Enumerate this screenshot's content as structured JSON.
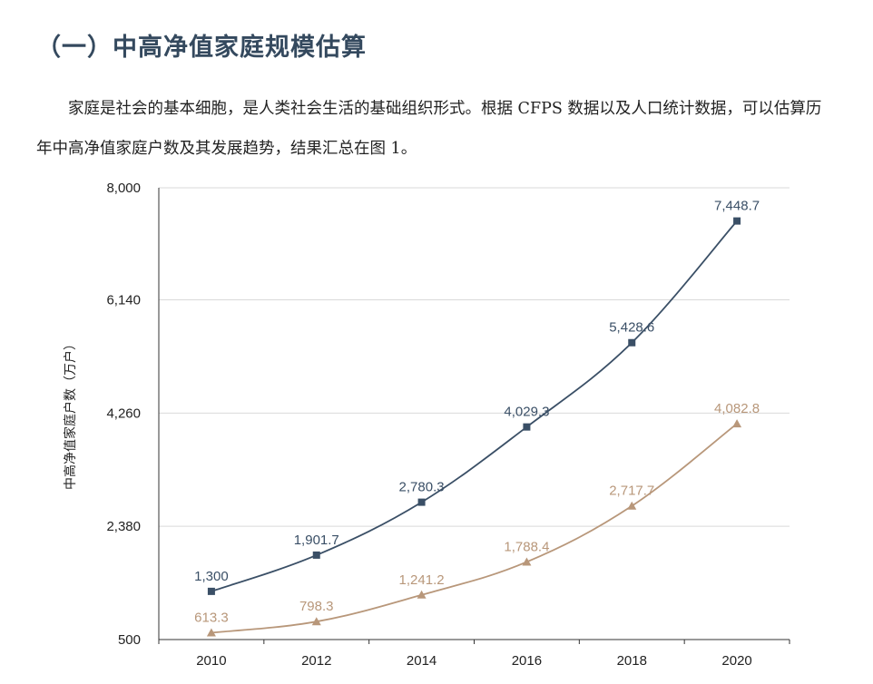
{
  "section": {
    "heading": "（一）中高净值家庭规模估算",
    "paragraph": "家庭是社会的基本细胞，是人类社会生活的基础组织形式。根据 CFPS 数据以及人口统计数据，可以估算历年中高净值家庭户数及其发展趋势，结果汇总在图 1。"
  },
  "chart_data": {
    "type": "line",
    "title": "",
    "xlabel": "",
    "ylabel": "中高净值家庭户数（万户）",
    "categories": [
      "2010",
      "2012",
      "2014",
      "2016",
      "2018",
      "2020"
    ],
    "ylim": [
      500,
      8000
    ],
    "yticks": [
      500,
      2380,
      4260,
      6140,
      8000
    ],
    "ytick_labels": [
      "500",
      "2,380",
      "4,260",
      "6,140",
      "8,000"
    ],
    "grid": true,
    "legend": "none",
    "series": [
      {
        "values": [
          1300,
          1901.7,
          2780.3,
          4029.3,
          5428.6,
          7448.7
        ],
        "labels": [
          "1,300",
          "1,901.7",
          "2,780.3",
          "4,029.3",
          "5,428.6",
          "7,448.7"
        ],
        "color": "#3a4f66",
        "marker": "square"
      },
      {
        "values": [
          613.3,
          798.3,
          1241.2,
          1788.4,
          2717.7,
          4082.8
        ],
        "labels": [
          "613.3",
          "798.3",
          "1,241.2",
          "1,788.4",
          "2,717.7",
          "4,082.8"
        ],
        "color": "#b8977a",
        "marker": "triangle"
      }
    ]
  }
}
